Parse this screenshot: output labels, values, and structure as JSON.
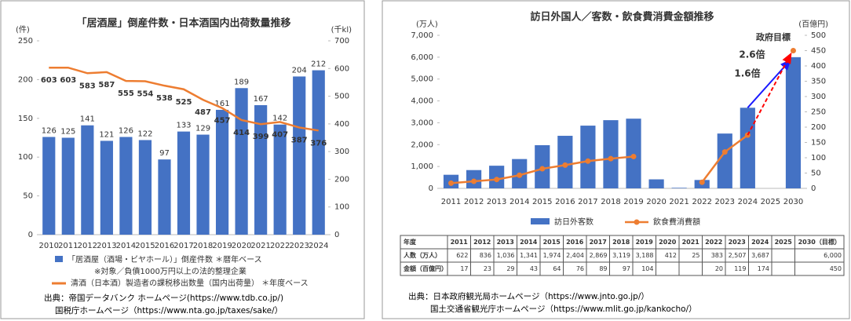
{
  "chart_data": [
    {
      "type": "combo",
      "title": "「居酒屋」倒産件数・日本酒国内出荷数量推移",
      "y_label": "(件)",
      "y2_label": "(千kl)",
      "categories": [
        "2010",
        "2011",
        "2012",
        "2013",
        "2014",
        "2015",
        "2016",
        "2017",
        "2018",
        "2019",
        "2020",
        "2021",
        "2022",
        "2023",
        "2024"
      ],
      "series": [
        {
          "name": "「居酒屋（酒場・ビヤホール）」倒産件数 ＊暦年ベース",
          "type": "bar",
          "color": "#4472c4",
          "data_labels": true,
          "values": [
            126,
            125,
            141,
            121,
            126,
            122,
            97,
            133,
            129,
            161,
            189,
            167,
            142,
            204,
            212
          ]
        },
        {
          "name": "清酒（日本酒）製造者の課税移出数量（国内出荷量） ＊年度ベース",
          "type": "line",
          "axis": "y2",
          "color": "#ed7d31",
          "data_labels": true,
          "label_color": "#ff0000",
          "markers": false,
          "values": [
            603,
            603,
            583,
            587,
            555,
            554,
            538,
            525,
            487,
            457,
            414,
            399,
            407,
            387,
            376
          ]
        }
      ],
      "legend_note": "※対象／負債1000万円以上の法的整理企業",
      "ylim": [
        0,
        250
      ],
      "yticks": [
        0,
        50,
        100,
        150,
        200,
        250
      ],
      "y2lim": [
        0,
        700
      ],
      "y2ticks": [
        0,
        100,
        200,
        300,
        400,
        500,
        600,
        700
      ],
      "y2_color": "#ff0000",
      "grid": false,
      "sources": [
        "出典：帝国データバンク ホームページ(https://www.tdb.co.jp/)",
        "国税庁ホームページ（https://www.nta.go.jp/taxes/sake/）"
      ]
    },
    {
      "type": "combo",
      "title": "訪日外国人／客数・飲食費消費金額推移",
      "y_label": "(万人)",
      "y2_label": "(百億円)",
      "categories": [
        "2011",
        "2012",
        "2013",
        "2014",
        "2015",
        "2016",
        "2017",
        "2018",
        "2019",
        "2020",
        "2021",
        "2022",
        "2023",
        "2024",
        "2025",
        "2030"
      ],
      "series": [
        {
          "name": "訪日外客数",
          "type": "bar",
          "color": "#4472c4",
          "data_labels": false,
          "values": [
            622,
            836,
            1036,
            1341,
            1974,
            2404,
            2869,
            3119,
            3188,
            412,
            25,
            383,
            2507,
            3687,
            null,
            6000
          ],
          "value_labels": [
            "622",
            "836",
            "1,036",
            "1,341",
            "1,974",
            "2,404",
            "2,869",
            "3,119",
            "3,188",
            "412",
            "25",
            "383",
            "2,507",
            "3,687",
            null,
            "6,000"
          ]
        },
        {
          "name": "飲食費消費額",
          "type": "line",
          "axis": "y2",
          "color": "#ed7d31",
          "data_labels": false,
          "markers": true,
          "values": [
            17,
            23,
            29,
            43,
            64,
            76,
            89,
            97,
            104,
            null,
            null,
            20,
            119,
            174,
            null,
            450
          ]
        }
      ],
      "ylim": [
        0,
        7000
      ],
      "yticks": [
        0,
        {
          "value": 1000,
          "label": "1,000"
        },
        {
          "value": 2000,
          "label": "2,000"
        },
        {
          "value": 3000,
          "label": "3,000"
        },
        {
          "value": 4000,
          "label": "4,000"
        },
        {
          "value": 5000,
          "label": "5,000"
        },
        {
          "value": 6000,
          "label": "6,000"
        },
        {
          "value": 7000,
          "label": "7,000"
        }
      ],
      "y2lim": [
        0,
        500
      ],
      "y2ticks": [
        0,
        50,
        100,
        150,
        200,
        250,
        300,
        350,
        400,
        450,
        500
      ],
      "grid": false,
      "annotations": {
        "target": "政府目標",
        "ratio_amount": "2.6倍",
        "ratio_visitors": "1.6倍"
      },
      "table": {
        "header": "年度",
        "last_column": "2030（目標）",
        "row_labels": [
          "人数（万人）",
          "金額（百億円）"
        ]
      },
      "sources": [
        "出典：日本政府観光局ホームページ（https://www.jnto.go.jp/）",
        "国土交通省観光庁ホームページ（https://www.mlit.go.jp/kankocho/）"
      ]
    }
  ]
}
